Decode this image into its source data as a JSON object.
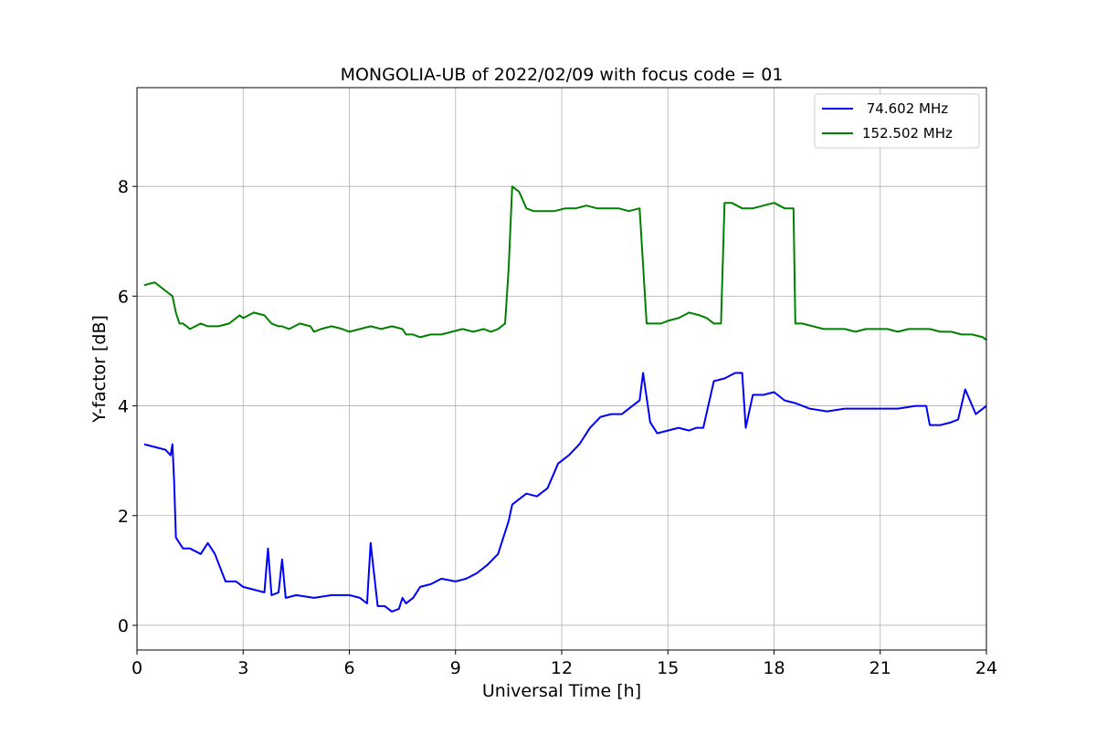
{
  "chart_data": {
    "type": "line",
    "title": "MONGOLIA-UB of 2022/02/09 with focus code = 01",
    "xlabel": "Universal Time [h]",
    "ylabel": "Y-factor [dB]",
    "xlim": [
      0,
      24
    ],
    "ylim": [
      -0.45,
      9.8
    ],
    "xticks": [
      0,
      3,
      6,
      9,
      12,
      15,
      18,
      21,
      24
    ],
    "yticks": [
      0,
      2,
      4,
      6,
      8
    ],
    "xtick_labels": [
      "0",
      "3",
      "6",
      "9",
      "12",
      "15",
      "18",
      "21",
      "24"
    ],
    "ytick_labels": [
      "0",
      "2",
      "4",
      "6",
      "8"
    ],
    "grid": true,
    "legend_position": "top-right",
    "series": [
      {
        "name": " 74.602 MHz",
        "color": "#0000ff",
        "x": [
          0.2,
          0.5,
          0.8,
          0.95,
          1.0,
          1.05,
          1.1,
          1.2,
          1.3,
          1.5,
          1.8,
          2.0,
          2.2,
          2.5,
          2.8,
          3.0,
          3.3,
          3.6,
          3.7,
          3.8,
          4.0,
          4.1,
          4.2,
          4.5,
          5.0,
          5.5,
          6.0,
          6.3,
          6.5,
          6.6,
          6.8,
          7.0,
          7.2,
          7.4,
          7.5,
          7.6,
          7.8,
          8.0,
          8.3,
          8.6,
          9.0,
          9.3,
          9.6,
          9.9,
          10.2,
          10.5,
          10.6,
          10.8,
          11.0,
          11.3,
          11.6,
          11.9,
          12.2,
          12.5,
          12.8,
          13.1,
          13.4,
          13.7,
          14.0,
          14.2,
          14.3,
          14.5,
          14.7,
          15.0,
          15.3,
          15.6,
          15.8,
          16.0,
          16.3,
          16.6,
          16.9,
          17.1,
          17.2,
          17.4,
          17.7,
          18.0,
          18.3,
          18.6,
          19.0,
          19.5,
          20.0,
          20.5,
          21.0,
          21.5,
          22.0,
          22.3,
          22.4,
          22.7,
          23.0,
          23.2,
          23.4,
          23.7,
          24.0
        ],
        "y": [
          3.3,
          3.25,
          3.2,
          3.1,
          3.3,
          2.6,
          1.6,
          1.5,
          1.4,
          1.4,
          1.3,
          1.5,
          1.3,
          0.8,
          0.8,
          0.7,
          0.65,
          0.6,
          1.4,
          0.55,
          0.6,
          1.2,
          0.5,
          0.55,
          0.5,
          0.55,
          0.55,
          0.5,
          0.4,
          1.5,
          0.35,
          0.35,
          0.25,
          0.3,
          0.5,
          0.4,
          0.5,
          0.7,
          0.75,
          0.85,
          0.8,
          0.85,
          0.95,
          1.1,
          1.3,
          1.9,
          2.2,
          2.3,
          2.4,
          2.35,
          2.5,
          2.95,
          3.1,
          3.3,
          3.6,
          3.8,
          3.85,
          3.85,
          4.0,
          4.1,
          4.6,
          3.7,
          3.5,
          3.55,
          3.6,
          3.55,
          3.6,
          3.6,
          4.45,
          4.5,
          4.6,
          4.6,
          3.6,
          4.2,
          4.2,
          4.25,
          4.1,
          4.05,
          3.95,
          3.9,
          3.95,
          3.95,
          3.95,
          3.95,
          4.0,
          4.0,
          3.65,
          3.65,
          3.7,
          3.75,
          4.3,
          3.85,
          4.0
        ]
      },
      {
        "name": "152.502 MHz",
        "color": "#008000",
        "x": [
          0.2,
          0.5,
          0.8,
          1.0,
          1.1,
          1.2,
          1.3,
          1.5,
          1.8,
          2.0,
          2.3,
          2.6,
          2.9,
          3.0,
          3.3,
          3.6,
          3.8,
          4.0,
          4.1,
          4.3,
          4.6,
          4.9,
          5.0,
          5.2,
          5.5,
          5.8,
          6.0,
          6.3,
          6.6,
          6.9,
          7.2,
          7.5,
          7.6,
          7.8,
          8.0,
          8.3,
          8.6,
          8.9,
          9.2,
          9.5,
          9.8,
          10.0,
          10.2,
          10.4,
          10.5,
          10.6,
          10.8,
          11.0,
          11.2,
          11.5,
          11.8,
          12.1,
          12.4,
          12.7,
          13.0,
          13.3,
          13.6,
          13.9,
          14.2,
          14.4,
          14.6,
          14.7,
          14.8,
          15.0,
          15.3,
          15.6,
          15.9,
          16.1,
          16.3,
          16.5,
          16.6,
          16.8,
          17.1,
          17.4,
          17.7,
          18.0,
          18.3,
          18.55,
          18.6,
          18.8,
          19.1,
          19.4,
          19.7,
          20.0,
          20.3,
          20.6,
          20.9,
          21.2,
          21.5,
          21.8,
          22.1,
          22.4,
          22.7,
          23.0,
          23.3,
          23.6,
          23.9,
          24.0
        ],
        "y": [
          6.2,
          6.25,
          6.1,
          6.0,
          5.7,
          5.5,
          5.5,
          5.4,
          5.5,
          5.45,
          5.45,
          5.5,
          5.65,
          5.6,
          5.7,
          5.65,
          5.5,
          5.45,
          5.45,
          5.4,
          5.5,
          5.45,
          5.35,
          5.4,
          5.45,
          5.4,
          5.35,
          5.4,
          5.45,
          5.4,
          5.45,
          5.4,
          5.3,
          5.3,
          5.25,
          5.3,
          5.3,
          5.35,
          5.4,
          5.35,
          5.4,
          5.35,
          5.4,
          5.5,
          6.5,
          8.0,
          7.9,
          7.6,
          7.55,
          7.55,
          7.55,
          7.6,
          7.6,
          7.65,
          7.6,
          7.6,
          7.6,
          7.55,
          7.6,
          5.5,
          5.5,
          5.5,
          5.5,
          5.55,
          5.6,
          5.7,
          5.65,
          5.6,
          5.5,
          5.5,
          7.7,
          7.7,
          7.6,
          7.6,
          7.65,
          7.7,
          7.6,
          7.6,
          5.5,
          5.5,
          5.45,
          5.4,
          5.4,
          5.4,
          5.35,
          5.4,
          5.4,
          5.4,
          5.35,
          5.4,
          5.4,
          5.4,
          5.35,
          5.35,
          5.3,
          5.3,
          5.25,
          5.2
        ]
      }
    ]
  }
}
